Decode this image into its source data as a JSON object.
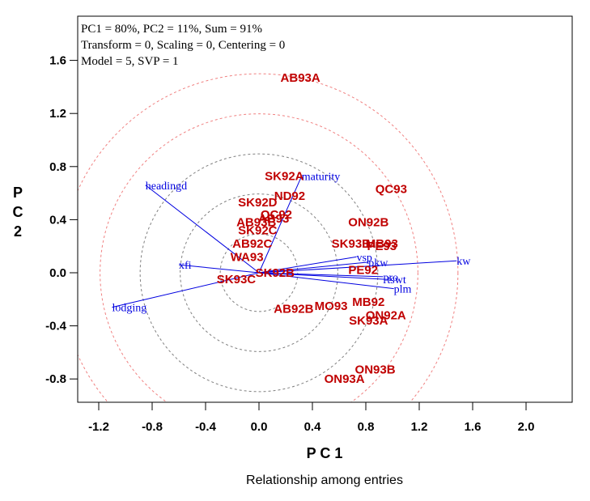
{
  "chart_data": {
    "type": "scatter",
    "subtype": "biplot",
    "title": "",
    "info_lines": [
      "PC1 = 80%, PC2 = 11%, Sum = 91%",
      "Transform = 0, Scaling = 0, Centering = 0",
      "Model = 5, SVP = 1"
    ],
    "xlabel": "P C 1",
    "ylabel": [
      "P",
      "C",
      "2"
    ],
    "caption": "Relationship among entries",
    "xlim": [
      -1.38,
      2.32
    ],
    "ylim": [
      -0.97,
      1.95
    ],
    "xticks": [
      -1.2,
      -0.8,
      -0.4,
      0.0,
      0.4,
      0.8,
      1.2,
      1.6,
      2.0
    ],
    "xtick_labels": [
      "-1.2",
      "-0.8",
      "-0.4",
      "0.0",
      "0.4",
      "0.8",
      "1.2",
      "1.6",
      "2.0"
    ],
    "yticks": [
      1.6,
      1.2,
      0.8,
      0.4,
      0.0,
      -0.4,
      -0.8
    ],
    "ytick_labels": [
      "1.6",
      "1.2",
      "0.8",
      "0.4",
      "0.0",
      "-0.4",
      "-0.8"
    ],
    "grid": false,
    "concentric_circles": {
      "center": [
        0.0,
        0.0
      ],
      "gray_radii": [
        0.29,
        0.59,
        0.89
      ],
      "red_radii": [
        1.19,
        1.49
      ],
      "gray_color": "#808080",
      "red_color": "#f08080"
    },
    "colors": {
      "entries": "#c00000",
      "traits": "#0000e0",
      "axes": "#000000"
    },
    "entries": [
      {
        "label": "AB93A",
        "x": 0.31,
        "y": 1.47
      },
      {
        "label": "SK92A",
        "x": 0.19,
        "y": 0.73
      },
      {
        "label": "QC93",
        "x": 0.99,
        "y": 0.63
      },
      {
        "label": "ND92",
        "x": 0.23,
        "y": 0.58
      },
      {
        "label": "SK92D",
        "x": -0.01,
        "y": 0.53
      },
      {
        "label": "QC92",
        "x": 0.13,
        "y": 0.44
      },
      {
        "label": "AB93",
        "x": 0.11,
        "y": 0.41
      },
      {
        "label": "AB93B",
        "x": -0.02,
        "y": 0.38
      },
      {
        "label": "SK92C",
        "x": -0.01,
        "y": 0.32
      },
      {
        "label": "ON92B",
        "x": 0.82,
        "y": 0.38
      },
      {
        "label": "SK93B",
        "x": 0.69,
        "y": 0.22
      },
      {
        "label": "MB93",
        "x": 0.92,
        "y": 0.22
      },
      {
        "label": "PE93",
        "x": 0.92,
        "y": 0.2
      },
      {
        "label": "AB92C",
        "x": -0.05,
        "y": 0.22
      },
      {
        "label": "WA93",
        "x": -0.09,
        "y": 0.12
      },
      {
        "label": "PE92",
        "x": 0.78,
        "y": 0.02
      },
      {
        "label": "SK92B",
        "x": 0.12,
        "y": 0.0
      },
      {
        "label": "SK93C",
        "x": -0.17,
        "y": -0.05
      },
      {
        "label": "AB92B",
        "x": 0.26,
        "y": -0.27
      },
      {
        "label": "MO93",
        "x": 0.54,
        "y": -0.25
      },
      {
        "label": "MB92",
        "x": 0.82,
        "y": -0.22
      },
      {
        "label": "ON92A",
        "x": 0.95,
        "y": -0.32
      },
      {
        "label": "SK93A",
        "x": 0.82,
        "y": -0.36
      },
      {
        "label": "ON93B",
        "x": 0.87,
        "y": -0.73
      },
      {
        "label": "ON93A",
        "x": 0.64,
        "y": -0.8
      }
    ],
    "traits": [
      {
        "label": "headingd",
        "x": -0.85,
        "y": 0.66
      },
      {
        "label": "maturity",
        "x": 0.32,
        "y": 0.73
      },
      {
        "label": "xfi",
        "x": -0.6,
        "y": 0.06
      },
      {
        "label": "lodging",
        "x": -1.1,
        "y": -0.26
      },
      {
        "label": "vsp",
        "x": 0.73,
        "y": 0.12
      },
      {
        "label": "pkw",
        "x": 0.82,
        "y": 0.08
      },
      {
        "label": "kw",
        "x": 1.48,
        "y": 0.09
      },
      {
        "label": "pro",
        "x": 0.93,
        "y": -0.03
      },
      {
        "label": "tswt",
        "x": 0.96,
        "y": -0.05
      },
      {
        "label": "plm",
        "x": 1.01,
        "y": -0.12
      }
    ]
  }
}
